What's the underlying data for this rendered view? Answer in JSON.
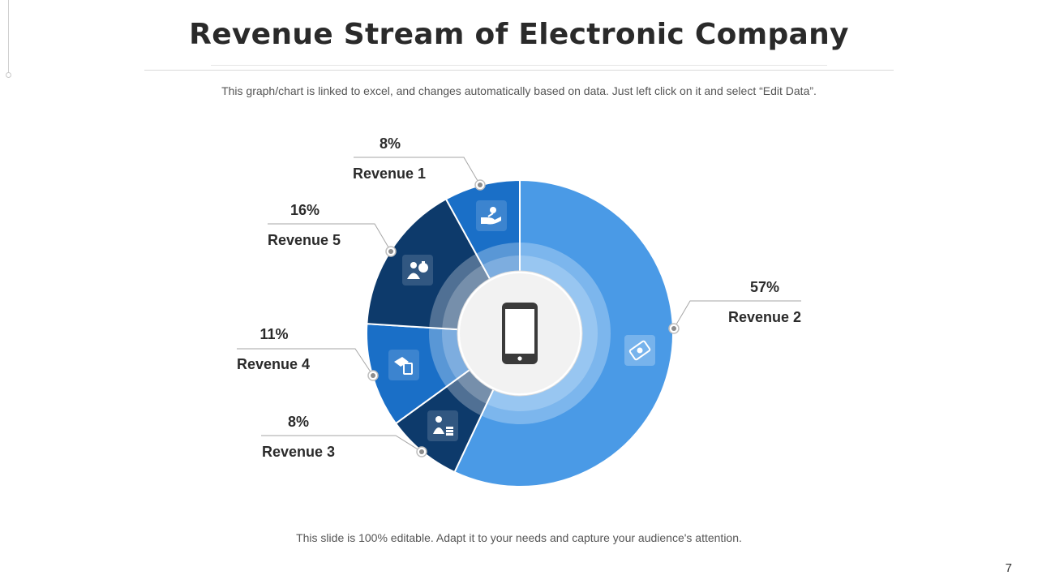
{
  "page": {
    "title": "Revenue Stream of Electronic Company",
    "subtitle": "This graph/chart is linked to excel, and changes automatically based on data. Just left click on it and select “Edit Data”.",
    "footer": "This slide is 100% editable. Adapt it to your needs and capture your audience's attention.",
    "page_number": "7"
  },
  "chart_data": {
    "type": "pie",
    "title": "Revenue Stream of Electronic Company",
    "center_icon": "smartphone-icon",
    "slices": [
      {
        "name": "Revenue 2",
        "value": 57,
        "label": "57%",
        "color": "#4a9ae6",
        "icon": "money-bill-icon"
      },
      {
        "name": "Revenue 3",
        "value": 8,
        "label": "8%",
        "color": "#0d3a6b",
        "icon": "coins-person-icon"
      },
      {
        "name": "Revenue 4",
        "value": 11,
        "label": "11%",
        "color": "#1a6fc7",
        "icon": "hand-card-icon"
      },
      {
        "name": "Revenue 5",
        "value": 16,
        "label": "16%",
        "color": "#0d3a6b",
        "icon": "money-bag-person-icon"
      },
      {
        "name": "Revenue 1",
        "value": 8,
        "label": "8%",
        "color": "#1a6fc7",
        "icon": "hand-coin-icon"
      }
    ]
  }
}
